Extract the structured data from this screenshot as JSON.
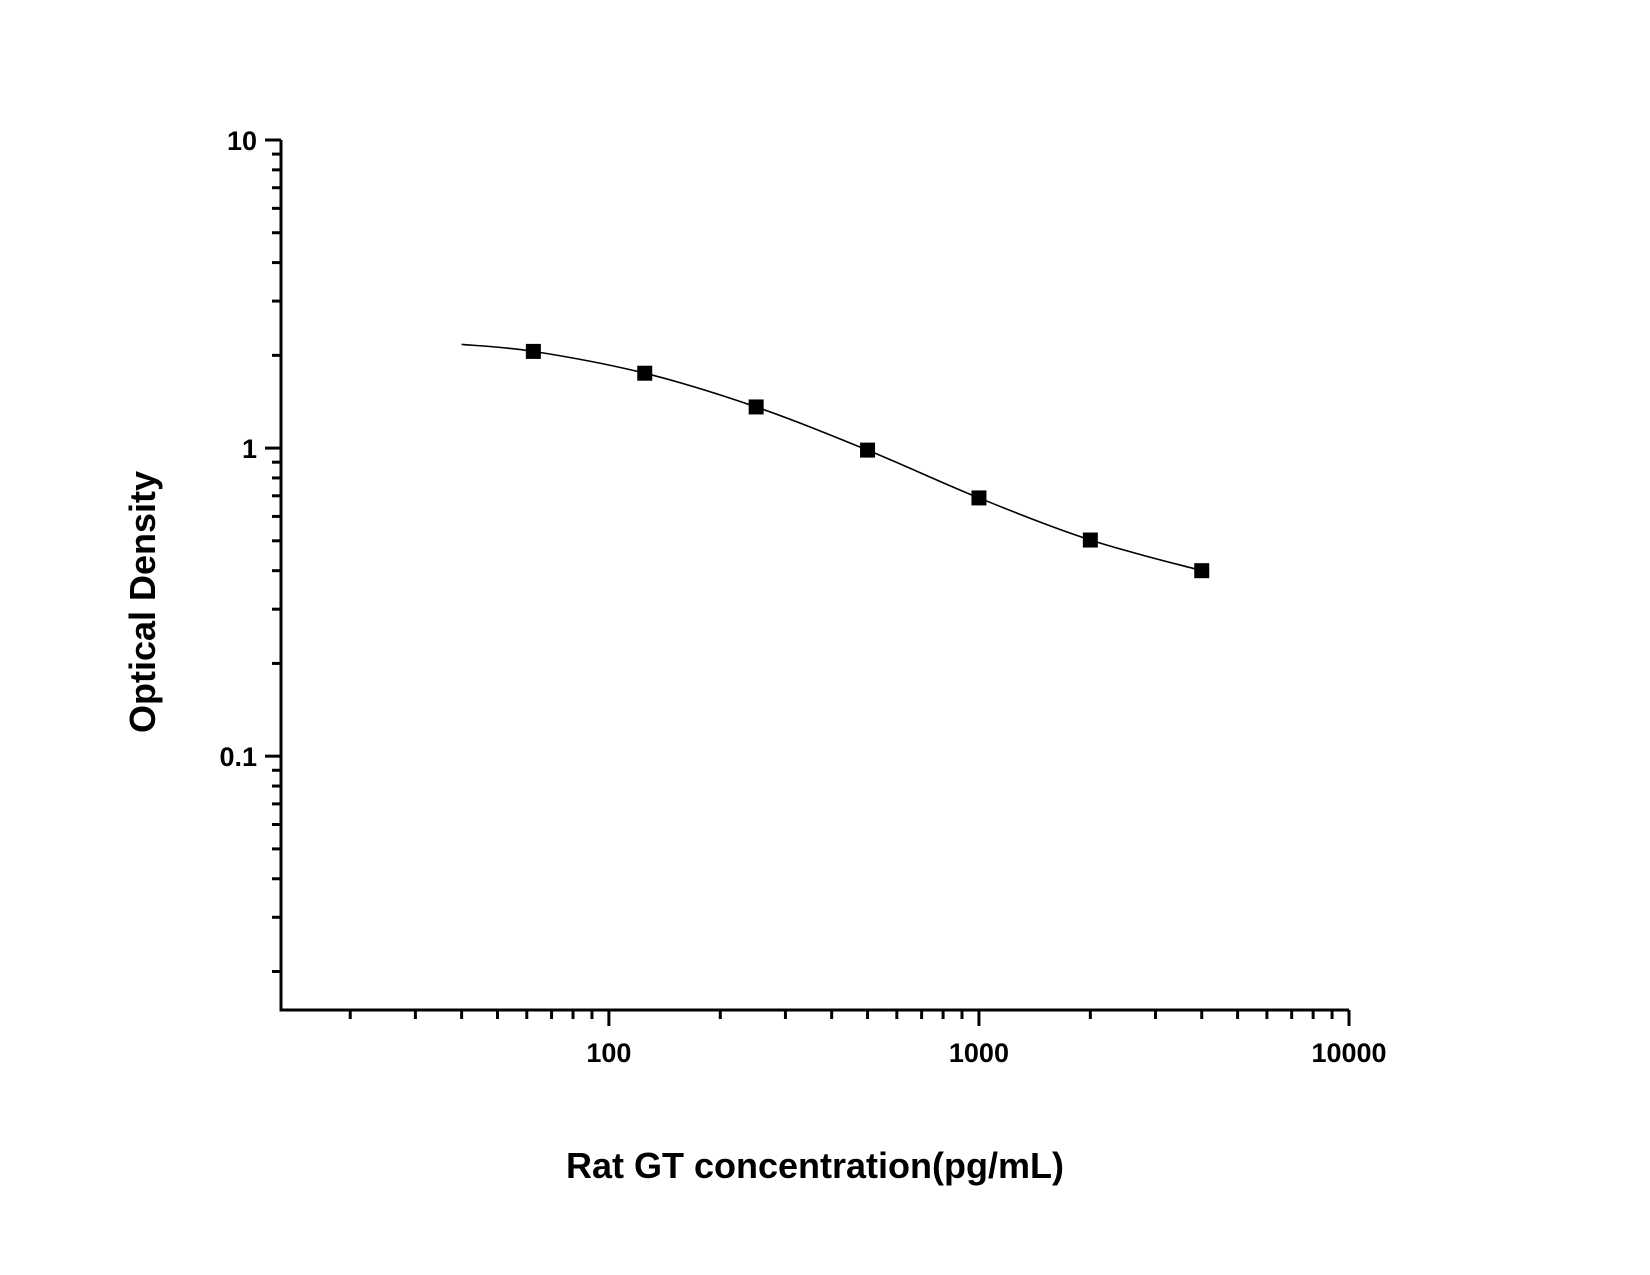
{
  "chart_data": {
    "type": "scatter",
    "title": "",
    "xlabel": "Rat GT concentration(pg/mL)",
    "ylabel": "Optical Density",
    "x_scale": "log",
    "y_scale": "log",
    "xlim": [
      13,
      10000
    ],
    "ylim": [
      0.015,
      10
    ],
    "x_ticks": [
      {
        "value": 100,
        "label": "100"
      },
      {
        "value": 1000,
        "label": "1000"
      },
      {
        "value": 10000,
        "label": "10000"
      }
    ],
    "y_ticks": [
      {
        "value": 0.1,
        "label": "0.1"
      },
      {
        "value": 1,
        "label": "1"
      },
      {
        "value": 10,
        "label": "10"
      }
    ],
    "grid": false,
    "marker": "square",
    "color": "#000000",
    "points": {
      "x": [
        62.5,
        125,
        250,
        500,
        1000,
        2000,
        4000
      ],
      "y": [
        2.06,
        1.75,
        1.36,
        0.985,
        0.689,
        0.503,
        0.4
      ]
    },
    "curve": {
      "x": [
        40,
        62.5,
        125,
        250,
        500,
        1000,
        2000,
        4000
      ],
      "y": [
        2.17,
        2.06,
        1.75,
        1.36,
        0.985,
        0.689,
        0.503,
        0.4
      ]
    }
  }
}
